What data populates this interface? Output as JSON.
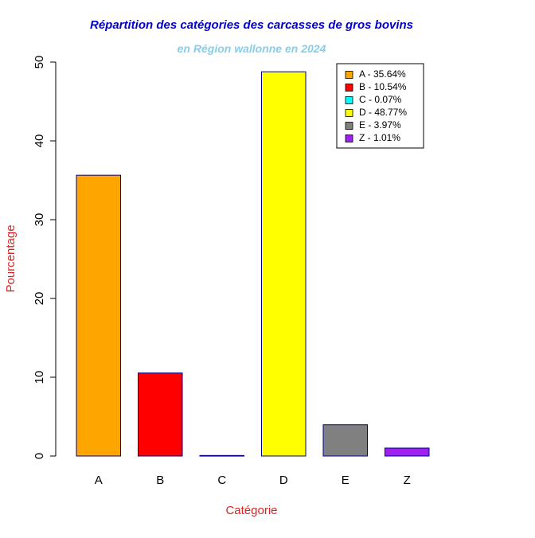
{
  "chart_data": {
    "type": "bar",
    "title": "Répartition des catégories des carcasses de gros bovins",
    "subtitle": "en Région wallonne en 2024",
    "xlabel": "Catégorie",
    "ylabel": "Pourcentage",
    "categories": [
      "A",
      "B",
      "C",
      "D",
      "E",
      "Z"
    ],
    "values": [
      35.64,
      10.54,
      0.07,
      48.77,
      3.97,
      1.01
    ],
    "colors": [
      "#FFA500",
      "#FF0000",
      "#00FFFF",
      "#FFFF00",
      "#808080",
      "#A020F0"
    ],
    "bar_border_color": "#00008B",
    "ylim": [
      0,
      50
    ],
    "yticks": [
      0,
      10,
      20,
      30,
      40,
      50
    ],
    "grid": false,
    "legend": {
      "placement": "top-right",
      "entries": [
        "A - 35.64%",
        "B - 10.54%",
        "C - 0.07%",
        "D - 48.77%",
        "E - 3.97%",
        "Z - 1.01%"
      ]
    },
    "title_color": "#0000CD",
    "subtitle_color": "#87CEEB",
    "axis_title_color": "#DD2222"
  }
}
